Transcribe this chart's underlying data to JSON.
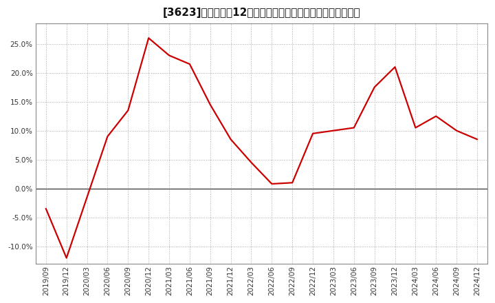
{
  "title": "[3623]　売上高の12か月移動合計の対前年同期増減率の推移",
  "x_labels": [
    "2019/09",
    "2019/12",
    "2020/03",
    "2020/06",
    "2020/09",
    "2020/12",
    "2021/03",
    "2021/06",
    "2021/09",
    "2021/12",
    "2022/03",
    "2022/06",
    "2022/09",
    "2022/12",
    "2023/03",
    "2023/06",
    "2023/09",
    "2023/12",
    "2024/03",
    "2024/06",
    "2024/09",
    "2024/12"
  ],
  "y_values": [
    -3.5,
    -12.0,
    -1.5,
    9.0,
    13.5,
    26.0,
    23.0,
    21.5,
    14.5,
    8.5,
    4.5,
    0.8,
    1.0,
    9.5,
    10.0,
    10.5,
    17.5,
    21.0,
    10.5,
    12.5,
    10.0,
    8.5
  ],
  "line_color": "#cc0000",
  "background_color": "#ffffff",
  "plot_bg_color": "#ffffff",
  "grid_color": "#aaaaaa",
  "border_color": "#888888",
  "ylim": [
    -13.0,
    28.5
  ],
  "yticks": [
    -10.0,
    -5.0,
    0.0,
    5.0,
    10.0,
    15.0,
    20.0,
    25.0
  ],
  "title_fontsize": 11,
  "axis_fontsize": 7.5,
  "line_width": 1.6
}
